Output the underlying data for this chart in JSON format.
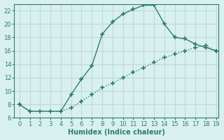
{
  "xlabel": "Humidex (Indice chaleur)",
  "line1_x": [
    0,
    1,
    2,
    3,
    4,
    5,
    6,
    7,
    8,
    9,
    10,
    11,
    12,
    13,
    14,
    15,
    16,
    17,
    18,
    19
  ],
  "line1_y": [
    8,
    7,
    7,
    7,
    7,
    9.5,
    11.8,
    13.8,
    18.5,
    20.3,
    21.5,
    22.2,
    22.8,
    22.8,
    20,
    18,
    17.8,
    17,
    16.5,
    16
  ],
  "line2_x": [
    0,
    1,
    4,
    5,
    6,
    7,
    8,
    9,
    10,
    11,
    12,
    13,
    14,
    15,
    16,
    17,
    18,
    19
  ],
  "line2_y": [
    8,
    7,
    7,
    7.5,
    8.5,
    9.5,
    10.5,
    11.2,
    12,
    12.8,
    13.5,
    14.3,
    15,
    15.5,
    16,
    16.5,
    16.8,
    16
  ],
  "line_color": "#2e7d6e",
  "bg_color": "#d9f0f0",
  "grid_color": "#c0d8d8",
  "ylim": [
    6,
    23
  ],
  "xlim": [
    0,
    19
  ],
  "yticks": [
    6,
    8,
    10,
    12,
    14,
    16,
    18,
    20,
    22
  ],
  "xticks": [
    0,
    1,
    2,
    3,
    4,
    5,
    6,
    7,
    8,
    9,
    10,
    11,
    12,
    13,
    14,
    15,
    16,
    17,
    18,
    19
  ]
}
